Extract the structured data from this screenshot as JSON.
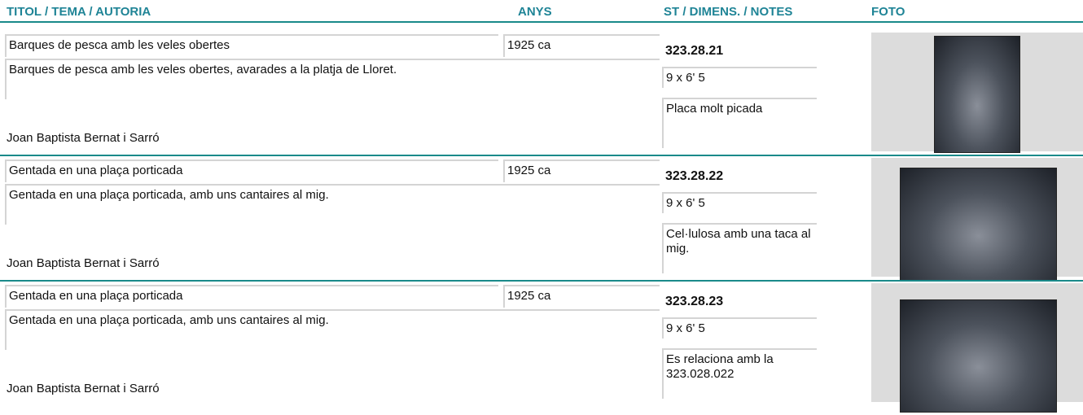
{
  "header": [
    "TITOL / TEMA / AUTORIA",
    "ANYS",
    "ST / DIMENS. / NOTES",
    "FOTO"
  ],
  "records": [
    {
      "title": "Barques de pesca amb les veles obertes",
      "years": "1925 ca",
      "description": "Barques de pesca amb les veles obertes, avarades a la platja de Lloret.",
      "author": "Joan Baptista Bernat i Sarró",
      "id": "323.28.21",
      "dimensions": "9 x 6' 5",
      "notes": "Placa molt picada"
    },
    {
      "title": "Gentada en una plaça porticada",
      "years": "1925 ca",
      "description": "Gentada en una plaça porticada, amb uns cantaires al mig.",
      "author": "Joan Baptista Bernat i Sarró",
      "id": "323.28.22",
      "dimensions": "9 x 6' 5",
      "notes": "Cel·lulosa amb una taca al mig."
    },
    {
      "title": "Gentada en una plaça porticada",
      "years": "1925 ca",
      "description": "Gentada en una plaça porticada, amb uns cantaires al mig.",
      "author": "Joan Baptista Bernat i Sarró",
      "id": "323.28.23",
      "dimensions": "9 x 6' 5",
      "notes": "Es relaciona amb la 323.028.022"
    }
  ]
}
